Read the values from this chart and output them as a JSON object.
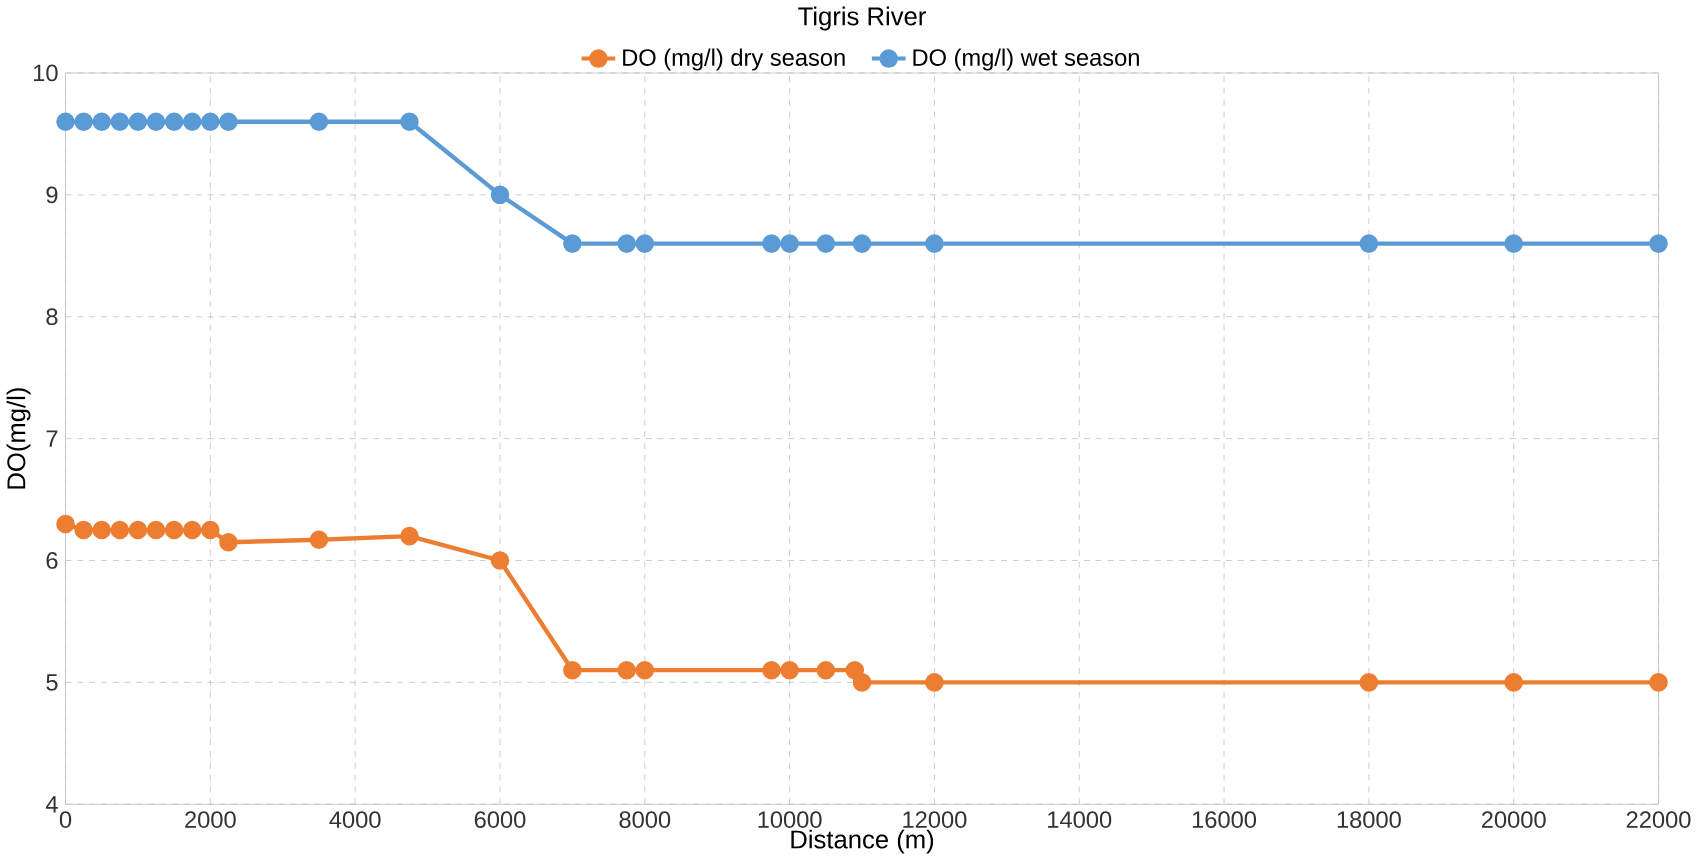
{
  "chart_data": {
    "type": "line",
    "title": "Tigris River",
    "xlabel": "Distance (m)",
    "ylabel": "DO(mg/l)",
    "x": [
      0,
      250,
      500,
      750,
      1000,
      1250,
      1500,
      1750,
      2000,
      2250,
      3500,
      4750,
      6000,
      7000,
      7750,
      8000,
      9750,
      10000,
      10500,
      10900,
      11000,
      12000,
      18000,
      20000,
      22000
    ],
    "series": [
      {
        "name": "DO (mg/l) dry season",
        "color": "#ed7d31",
        "values": [
          6.3,
          6.25,
          6.25,
          6.25,
          6.25,
          6.25,
          6.25,
          6.25,
          6.25,
          6.15,
          6.17,
          6.2,
          6.0,
          5.1,
          5.1,
          5.1,
          5.1,
          5.1,
          5.1,
          5.1,
          5.0,
          5.0,
          5.0,
          5.0,
          5.0
        ]
      },
      {
        "name": "DO (mg/l) wet season",
        "color": "#5b9bd5",
        "values": [
          9.6,
          9.6,
          9.6,
          9.6,
          9.6,
          9.6,
          9.6,
          9.6,
          9.6,
          9.6,
          9.6,
          9.6,
          9.0,
          8.6,
          8.6,
          8.6,
          8.6,
          8.6,
          8.6,
          null,
          8.6,
          8.6,
          8.6,
          8.6,
          8.6
        ]
      }
    ],
    "xlim": [
      0,
      22000
    ],
    "ylim": [
      4,
      10
    ],
    "xticks": [
      0,
      2000,
      4000,
      6000,
      8000,
      10000,
      12000,
      14000,
      16000,
      18000,
      20000,
      22000
    ],
    "yticks": [
      4,
      5,
      6,
      7,
      8,
      9,
      10
    ],
    "grid": true,
    "legend": "top",
    "marker": "circle",
    "line_style": "solid"
  }
}
